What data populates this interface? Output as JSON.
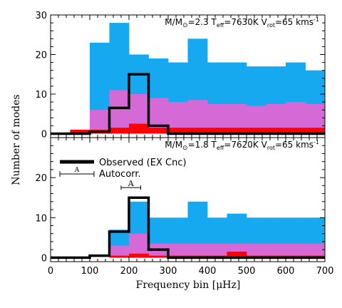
{
  "chart_data": [
    {
      "type": "bar",
      "panel": "top",
      "annotation": "M/M⊙=2.3 Teff=7630K Vrot=65 kms⁻¹",
      "annotation_parts": {
        "m": "M/M",
        "sun": "⊙",
        "mass": "=2.3",
        "t": "T",
        "t_sub": "eff",
        "temp": "=7630K",
        "v": "V",
        "v_sub": "rot",
        "vrot": "=65 kms",
        "unit_sup": "-1"
      },
      "ylim": [
        -1,
        30
      ],
      "yticks": [
        "0",
        "10",
        "20",
        "30"
      ],
      "bin_edges": [
        0,
        50,
        100,
        150,
        200,
        250,
        300,
        350,
        400,
        450,
        500,
        550,
        600,
        650,
        700
      ],
      "series": [
        {
          "color": "#17a9f0",
          "values": [
            0,
            0,
            23,
            28,
            20,
            19,
            18,
            24,
            18,
            18,
            17,
            17,
            18,
            16
          ]
        },
        {
          "color": "#d56ad6",
          "values": [
            0,
            0,
            6,
            11,
            10,
            9,
            8,
            8.5,
            7.5,
            7.5,
            7,
            7.5,
            8,
            7.5
          ]
        },
        {
          "color": "#ff0000",
          "values": [
            0,
            1,
            1,
            1.5,
            2.5,
            1.5,
            1.5,
            1.5,
            1.5,
            1.5,
            1.5,
            1.5,
            1.5,
            1.5
          ]
        }
      ],
      "observed": [
        0,
        0,
        0.5,
        6.5,
        15,
        2,
        0,
        0,
        0,
        0,
        0,
        0,
        0,
        0
      ]
    },
    {
      "type": "bar",
      "panel": "bottom",
      "annotation": "M/M⊙=1.8 Teff=7620K Vrot=65 kms⁻¹",
      "annotation_parts": {
        "m": "M/M",
        "sun": "⊙",
        "mass": "=1.8",
        "t": "T",
        "t_sub": "eff",
        "temp": "=7620K",
        "v": "V",
        "v_sub": "rot",
        "vrot": "=65 kms",
        "unit_sup": "-1"
      },
      "ylim": [
        -1,
        30
      ],
      "yticks": [
        "0",
        "10",
        "20"
      ],
      "xlim": [
        0,
        700
      ],
      "xticks": [
        "0",
        "100",
        "200",
        "300",
        "400",
        "500",
        "600",
        "700"
      ],
      "xlabel": "Frequency bin [μHz]",
      "bin_edges": [
        0,
        50,
        100,
        150,
        200,
        250,
        300,
        350,
        400,
        450,
        500,
        550,
        600,
        650,
        700
      ],
      "series": [
        {
          "color": "#17a9f0",
          "values": [
            0,
            0,
            0,
            7,
            14,
            10,
            10,
            14,
            10,
            11,
            10,
            10,
            10,
            10
          ]
        },
        {
          "color": "#d56ad6",
          "values": [
            0,
            0,
            0,
            3,
            6,
            3.5,
            3.5,
            3.5,
            3.5,
            3.5,
            3.5,
            3.5,
            3.5,
            3.5
          ]
        },
        {
          "color": "#ff0000",
          "values": [
            0,
            0,
            0,
            0.5,
            1,
            0.5,
            0.5,
            0.5,
            0.5,
            1.5,
            0.5,
            0.5,
            0.5,
            0.5
          ]
        }
      ],
      "observed": [
        0,
        0,
        0.5,
        6.5,
        15,
        2,
        0,
        0,
        0,
        0,
        0,
        0,
        0,
        0
      ]
    }
  ],
  "ylabel": "Number of modes",
  "legend": {
    "observed": "Observed (EX Cnc)",
    "autocorr": "Autocorr.",
    "autocorr_mark": "A"
  },
  "marker": {
    "label": "A",
    "from": 180,
    "to": 230,
    "value": 17.5
  }
}
